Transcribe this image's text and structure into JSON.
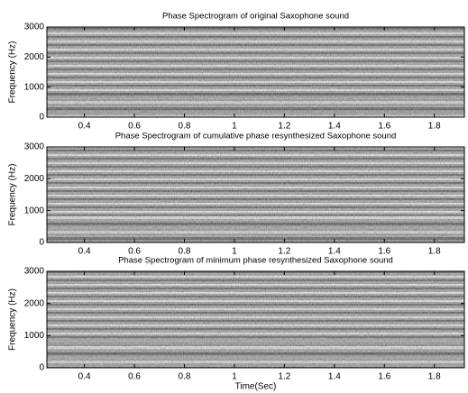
{
  "chart_data": [
    {
      "type": "image",
      "title": "Phase Spectrogram of original Saxophone sound",
      "ylabel": "Frequency (Hz)",
      "xlim": [
        0.25,
        1.92
      ],
      "ylim": [
        0,
        3000
      ],
      "xticks": [
        0.4,
        0.6,
        0.8,
        1,
        1.2,
        1.4,
        1.6,
        1.8
      ],
      "yticks": [
        0,
        1000,
        2000,
        3000
      ]
    },
    {
      "type": "image",
      "title": "Phase Spectrogram of cumulative phase resynthesized Saxophone sound",
      "ylabel": "Frequency (Hz)",
      "xlim": [
        0.25,
        1.92
      ],
      "ylim": [
        0,
        3000
      ],
      "xticks": [
        0.4,
        0.6,
        0.8,
        1,
        1.2,
        1.4,
        1.6,
        1.8
      ],
      "yticks": [
        0,
        1000,
        2000,
        3000
      ]
    },
    {
      "type": "image",
      "title": "Phase Spectrogram of minimum phase resynthesized Saxophone sound",
      "ylabel": "Frequency (Hz)",
      "xlabel": "Time(Sec)",
      "xlim": [
        0.25,
        1.92
      ],
      "ylim": [
        0,
        3000
      ],
      "xticks": [
        0.4,
        0.6,
        0.8,
        1,
        1.2,
        1.4,
        1.6,
        1.8
      ],
      "yticks": [
        0,
        1000,
        2000,
        3000
      ]
    }
  ]
}
